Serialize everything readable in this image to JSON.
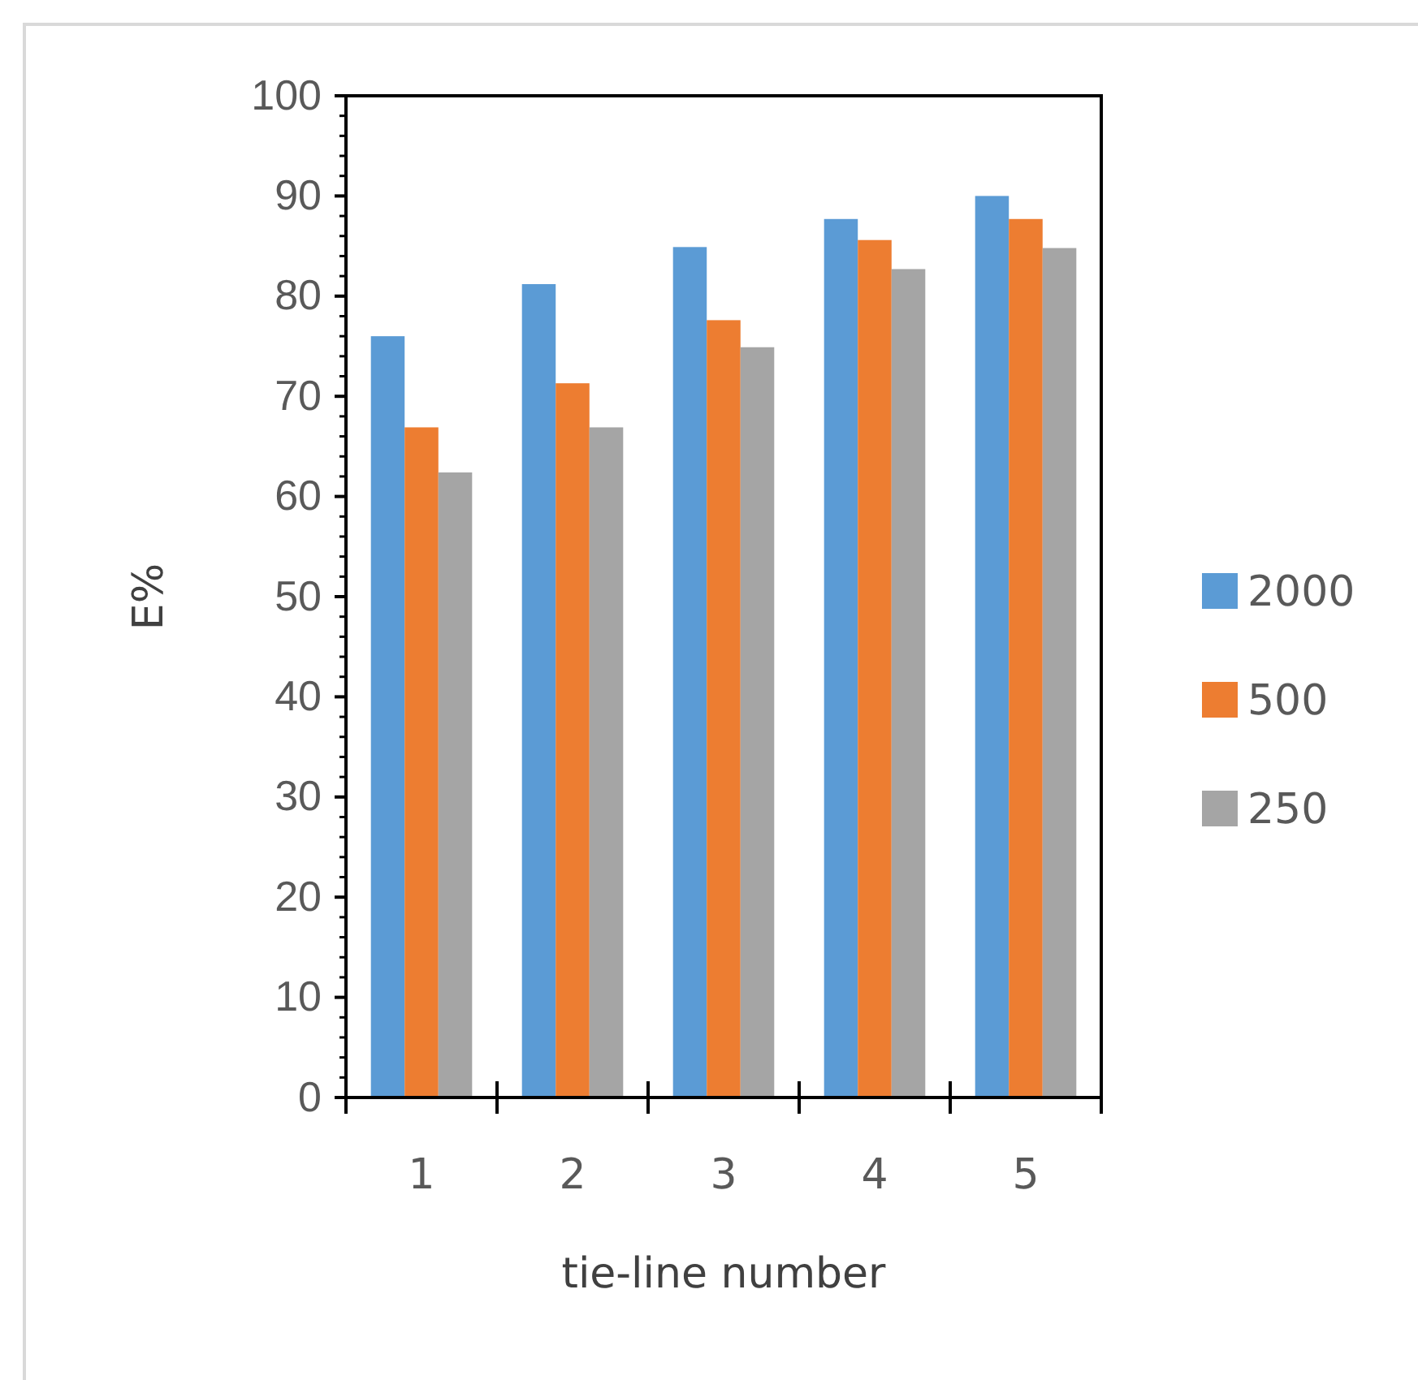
{
  "chart_data": {
    "type": "bar",
    "xlabel": "tie-line number",
    "ylabel": "E%",
    "categories": [
      "1",
      "2",
      "3",
      "4",
      "5"
    ],
    "series": [
      {
        "name": "2000",
        "color": "#5b9bd5",
        "values": [
          76,
          81.2,
          84.9,
          87.7,
          90
        ]
      },
      {
        "name": "500",
        "color": "#ed7d31",
        "values": [
          66.9,
          71.3,
          77.6,
          85.6,
          87.7
        ]
      },
      {
        "name": "250",
        "color": "#a5a5a5",
        "values": [
          62.4,
          66.9,
          74.9,
          82.7,
          84.8
        ]
      }
    ],
    "ylim": [
      0,
      100
    ],
    "yticks": [
      0,
      10,
      20,
      30,
      40,
      50,
      60,
      70,
      80,
      90,
      100
    ],
    "grid": false,
    "legend": "right"
  }
}
